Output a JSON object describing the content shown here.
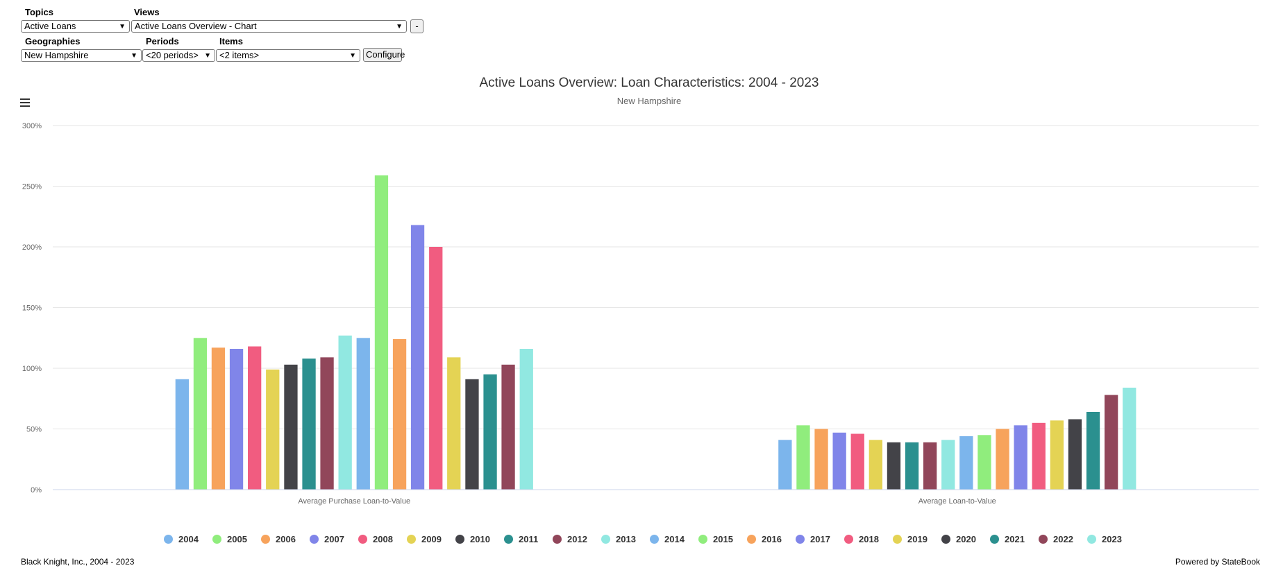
{
  "controls": {
    "topics_label": "Topics",
    "topics_value": "Active Loans",
    "views_label": "Views",
    "views_value": "Active Loans Overview - Chart",
    "minus_label": "-",
    "geographies_label": "Geographies",
    "geographies_value": "New Hampshire",
    "periods_label": "Periods",
    "periods_value": "<20 periods>",
    "items_label": "Items",
    "items_value": "<2 items>",
    "configure_label": "Configure"
  },
  "icons": {
    "menu": "hamburger-menu-icon",
    "dropdown": "chevron-down-icon"
  },
  "footer": {
    "source": "Black Knight, Inc., 2004 - 2023",
    "powered": "Powered by StateBook"
  },
  "chart_data": {
    "type": "bar",
    "title": "Active Loans Overview: Loan Characteristics: 2004 - 2023",
    "subtitle": "New Hampshire",
    "categories": [
      "Average Purchase Loan-to-Value",
      "Average Loan-to-Value"
    ],
    "ylim": [
      0,
      300
    ],
    "yticks": [
      0,
      50,
      100,
      150,
      200,
      250,
      300
    ],
    "ytick_suffix": "%",
    "grid": true,
    "legend_position": "bottom",
    "series": [
      {
        "name": "2004",
        "color": "#7cb5ec",
        "values": [
          91,
          41
        ]
      },
      {
        "name": "2005",
        "color": "#90ed7d",
        "values": [
          125,
          53
        ]
      },
      {
        "name": "2006",
        "color": "#f7a35c",
        "values": [
          117,
          50
        ]
      },
      {
        "name": "2007",
        "color": "#8085e9",
        "values": [
          116,
          47
        ]
      },
      {
        "name": "2008",
        "color": "#f15c80",
        "values": [
          118,
          46
        ]
      },
      {
        "name": "2009",
        "color": "#e4d354",
        "values": [
          99,
          41
        ]
      },
      {
        "name": "2010",
        "color": "#434348",
        "values": [
          103,
          39
        ]
      },
      {
        "name": "2011",
        "color": "#2b908f",
        "values": [
          108,
          39
        ]
      },
      {
        "name": "2012",
        "color": "#91465a",
        "values": [
          109,
          39
        ]
      },
      {
        "name": "2013",
        "color": "#91e8e1",
        "values": [
          127,
          41
        ]
      },
      {
        "name": "2014",
        "color": "#7cb5ec",
        "values": [
          125,
          44
        ]
      },
      {
        "name": "2015",
        "color": "#90ed7d",
        "values": [
          259,
          45
        ]
      },
      {
        "name": "2016",
        "color": "#f7a35c",
        "values": [
          124,
          50
        ]
      },
      {
        "name": "2017",
        "color": "#8085e9",
        "values": [
          218,
          53
        ]
      },
      {
        "name": "2018",
        "color": "#f15c80",
        "values": [
          200,
          55
        ]
      },
      {
        "name": "2019",
        "color": "#e4d354",
        "values": [
          109,
          57
        ]
      },
      {
        "name": "2020",
        "color": "#434348",
        "values": [
          91,
          58
        ]
      },
      {
        "name": "2021",
        "color": "#2b908f",
        "values": [
          95,
          64
        ]
      },
      {
        "name": "2022",
        "color": "#91465a",
        "values": [
          103,
          78
        ]
      },
      {
        "name": "2023",
        "color": "#91e8e1",
        "values": [
          116,
          84
        ]
      }
    ]
  }
}
